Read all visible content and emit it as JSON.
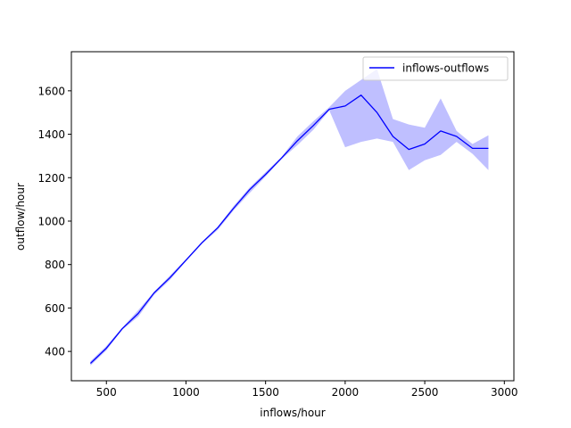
{
  "chart_data": {
    "type": "line",
    "xlabel": "inflows/hour",
    "ylabel": "outflow/hour",
    "xlim": [
      280,
      3060
    ],
    "ylim": [
      265,
      1780
    ],
    "xticks": [
      500,
      1000,
      1500,
      2000,
      2500,
      3000
    ],
    "yticks": [
      400,
      600,
      800,
      1000,
      1200,
      1400,
      1600
    ],
    "grid": false,
    "legend_position": "top-right",
    "colors": {
      "line": "#0000ff",
      "band": "#0000ff",
      "band_opacity": 0.25
    },
    "series": [
      {
        "name": "inflows-outflows",
        "x": [
          400,
          500,
          600,
          700,
          800,
          900,
          1000,
          1100,
          1200,
          1300,
          1400,
          1500,
          1600,
          1700,
          1800,
          1900,
          2000,
          2100,
          2200,
          2300,
          2400,
          2500,
          2600,
          2700,
          2800,
          2900
        ],
        "y": [
          345,
          415,
          505,
          575,
          670,
          740,
          820,
          900,
          970,
          1060,
          1145,
          1215,
          1290,
          1370,
          1440,
          1515,
          1530,
          1580,
          1500,
          1390,
          1330,
          1355,
          1415,
          1390,
          1335,
          1335
        ],
        "lower": [
          335,
          405,
          500,
          560,
          660,
          730,
          815,
          895,
          960,
          1050,
          1130,
          1205,
          1285,
          1350,
          1420,
          1510,
          1340,
          1365,
          1380,
          1365,
          1235,
          1280,
          1305,
          1365,
          1310,
          1235
        ],
        "upper": [
          355,
          425,
          510,
          590,
          675,
          750,
          825,
          905,
          975,
          1070,
          1155,
          1225,
          1295,
          1390,
          1460,
          1525,
          1600,
          1650,
          1700,
          1470,
          1445,
          1430,
          1565,
          1415,
          1355,
          1395
        ]
      }
    ]
  }
}
